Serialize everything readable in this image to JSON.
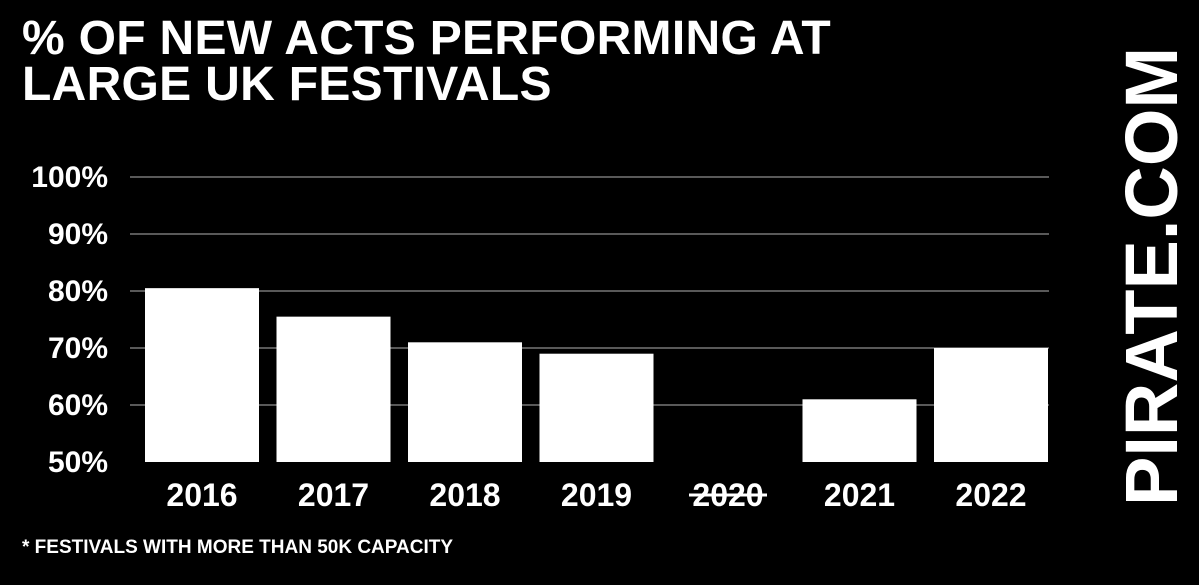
{
  "title_lines": [
    "% OF NEW ACTS PERFORMING AT",
    "LARGE UK FESTIVALS"
  ],
  "brand": "PIRATE.COM",
  "footnote": "* FESTIVALS WITH MORE THAN 50K CAPACITY",
  "colors": {
    "background": "#000000",
    "bars": "#ffffff",
    "text": "#ffffff",
    "gridlines": "#777777"
  },
  "chart_data": {
    "type": "bar",
    "title": "% OF NEW ACTS PERFORMING AT LARGE UK FESTIVALS",
    "categories": [
      "2016",
      "2017",
      "2018",
      "2019",
      "2020",
      "2021",
      "2022"
    ],
    "struck_categories": [
      "2020"
    ],
    "values": [
      80.5,
      75.5,
      71.0,
      69.0,
      null,
      61.0,
      70.0
    ],
    "yticks": [
      "50%",
      "60%",
      "70%",
      "80%",
      "90%",
      "100%"
    ],
    "ytick_values": [
      50,
      60,
      70,
      80,
      90,
      100
    ],
    "ylim": [
      50,
      100
    ],
    "grid": true,
    "legend": "none"
  }
}
